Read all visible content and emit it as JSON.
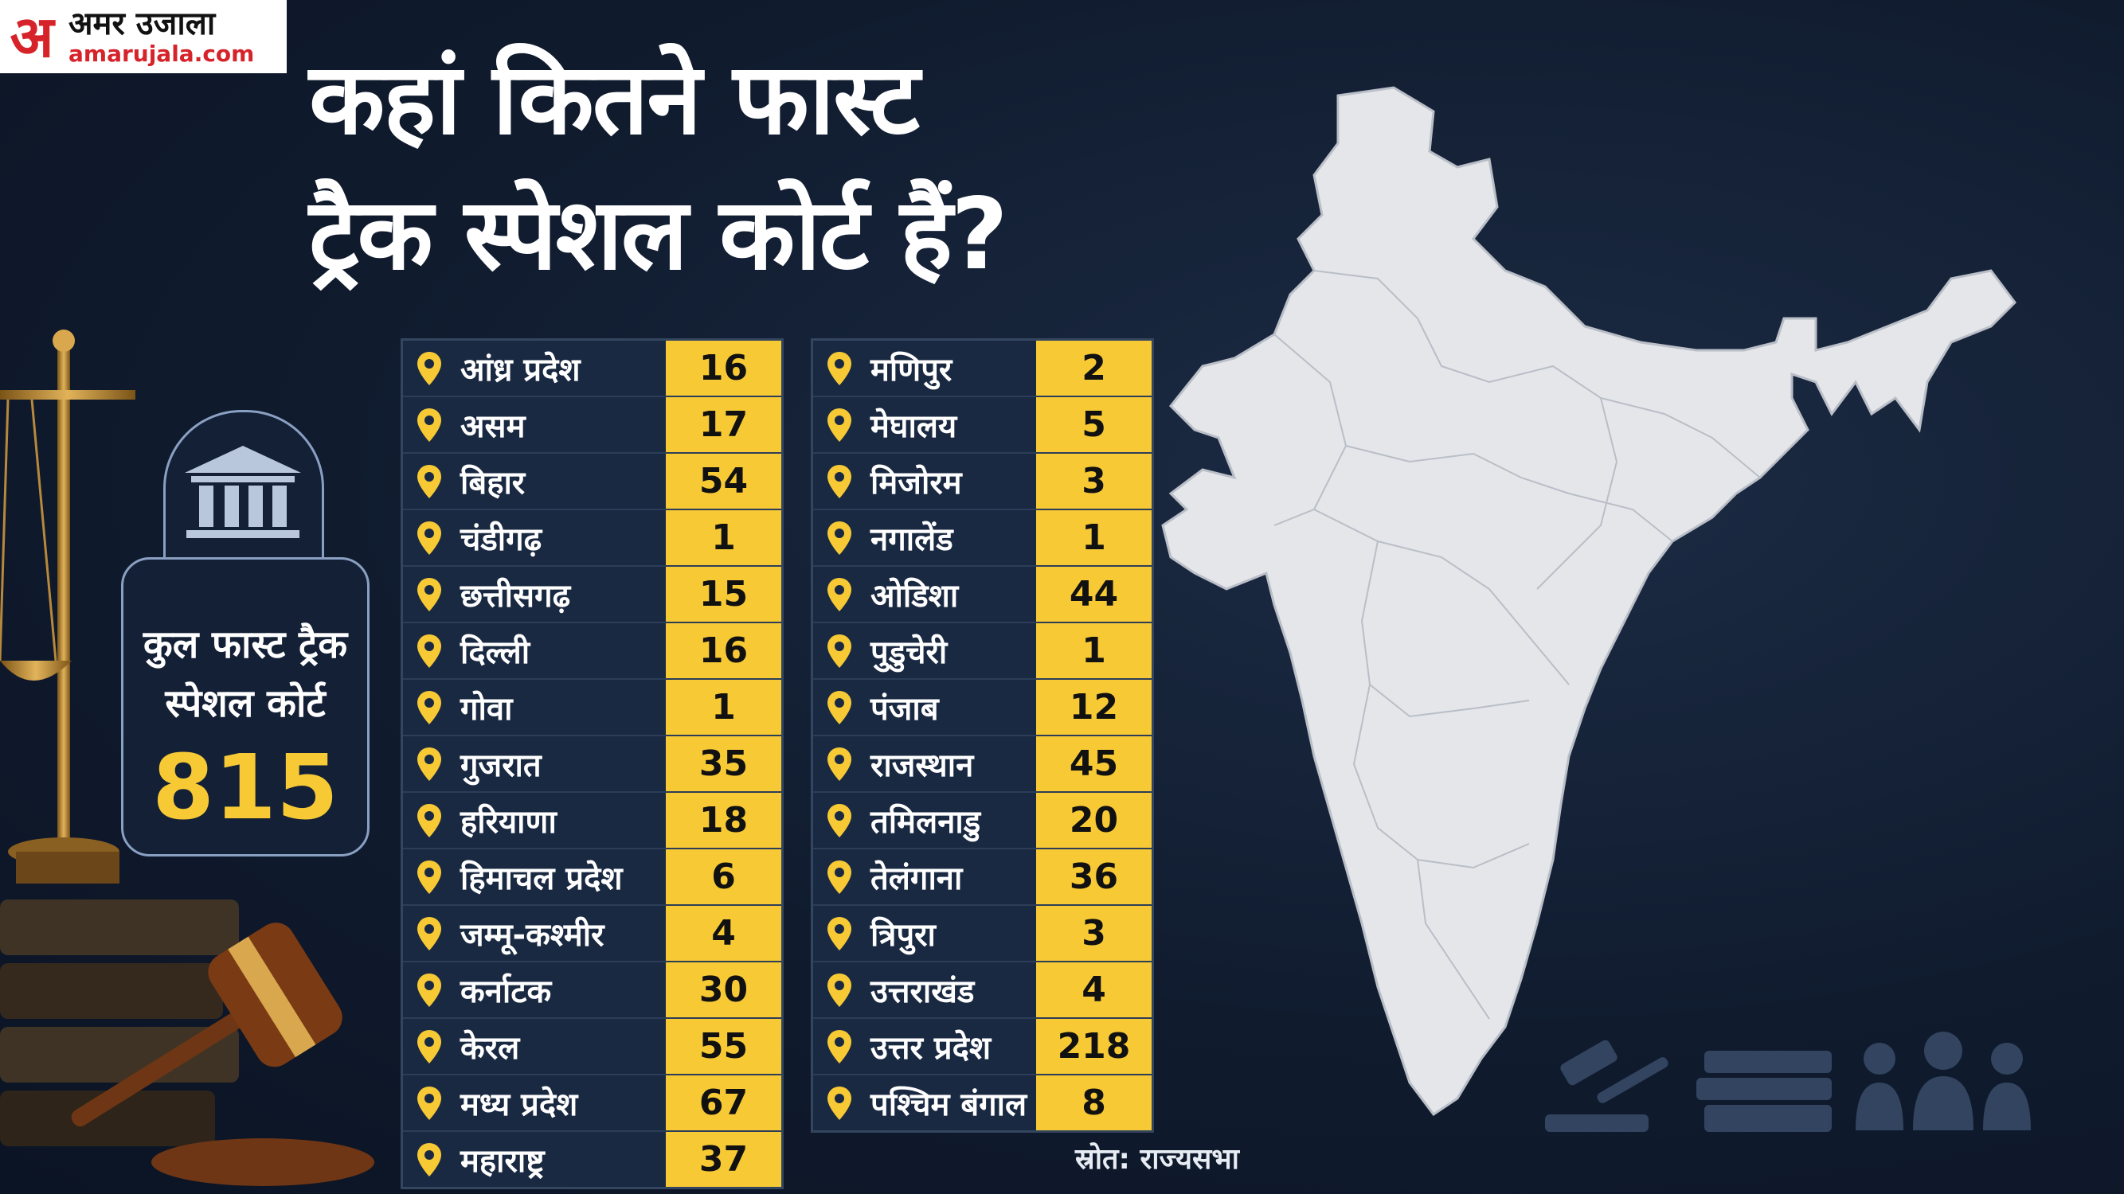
{
  "brand": {
    "mark": "अ",
    "name": "अमर उजाला",
    "domain": "amarujala.com",
    "accent": "#d6232a"
  },
  "title": {
    "line1": "कहां कितने फास्ट",
    "line2": "ट्रैक स्पेशल कोर्ट हैं?"
  },
  "colors": {
    "background": "#101b2e",
    "value_fill": "#f6c935",
    "map_fill": "#e4e6ea"
  },
  "total": {
    "icon": "court-building-icon",
    "label_line1": "कुल फास्ट ट्रैक",
    "label_line2": "स्पेशल कोर्ट",
    "value": "815"
  },
  "states_left": [
    {
      "name": "आंध्र प्रदेश",
      "value": "16"
    },
    {
      "name": "असम",
      "value": "17"
    },
    {
      "name": "बिहार",
      "value": "54"
    },
    {
      "name": "चंडीगढ़",
      "value": "1"
    },
    {
      "name": "छत्तीसगढ़",
      "value": "15"
    },
    {
      "name": "दिल्ली",
      "value": "16"
    },
    {
      "name": "गोवा",
      "value": "1"
    },
    {
      "name": "गुजरात",
      "value": "35"
    },
    {
      "name": "हरियाणा",
      "value": "18"
    },
    {
      "name": "हिमाचल प्रदेश",
      "value": "6"
    },
    {
      "name": "जम्मू-कश्मीर",
      "value": "4"
    },
    {
      "name": "कर्नाटक",
      "value": "30"
    },
    {
      "name": "केरल",
      "value": "55"
    },
    {
      "name": "मध्य प्रदेश",
      "value": "67"
    },
    {
      "name": "महाराष्ट्र",
      "value": "37"
    }
  ],
  "states_right": [
    {
      "name": "मणिपुर",
      "value": "2"
    },
    {
      "name": "मेघालय",
      "value": "5"
    },
    {
      "name": "मिजोरम",
      "value": "3"
    },
    {
      "name": "नगालेंड",
      "value": "1"
    },
    {
      "name": "ओडिशा",
      "value": "44"
    },
    {
      "name": "पुडुचेरी",
      "value": "1"
    },
    {
      "name": "पंजाब",
      "value": "12"
    },
    {
      "name": "राजस्थान",
      "value": "45"
    },
    {
      "name": "तमिलनाडु",
      "value": "20"
    },
    {
      "name": "तेलंगाना",
      "value": "36"
    },
    {
      "name": "त्रिपुरा",
      "value": "3"
    },
    {
      "name": "उत्तराखंड",
      "value": "4"
    },
    {
      "name": "उत्तर प्रदेश",
      "value": "218"
    },
    {
      "name": "पश्चिम बंगाल",
      "value": "8"
    }
  ],
  "source": "स्रोत: राज्यसभा",
  "icons": {
    "pin": "location-pin-icon",
    "map": "india-map-icon",
    "scale": "justice-scale-icon",
    "gavel": "gavel-icon",
    "legal": [
      "gavel-icon",
      "law-books-icon",
      "people-icon"
    ]
  }
}
